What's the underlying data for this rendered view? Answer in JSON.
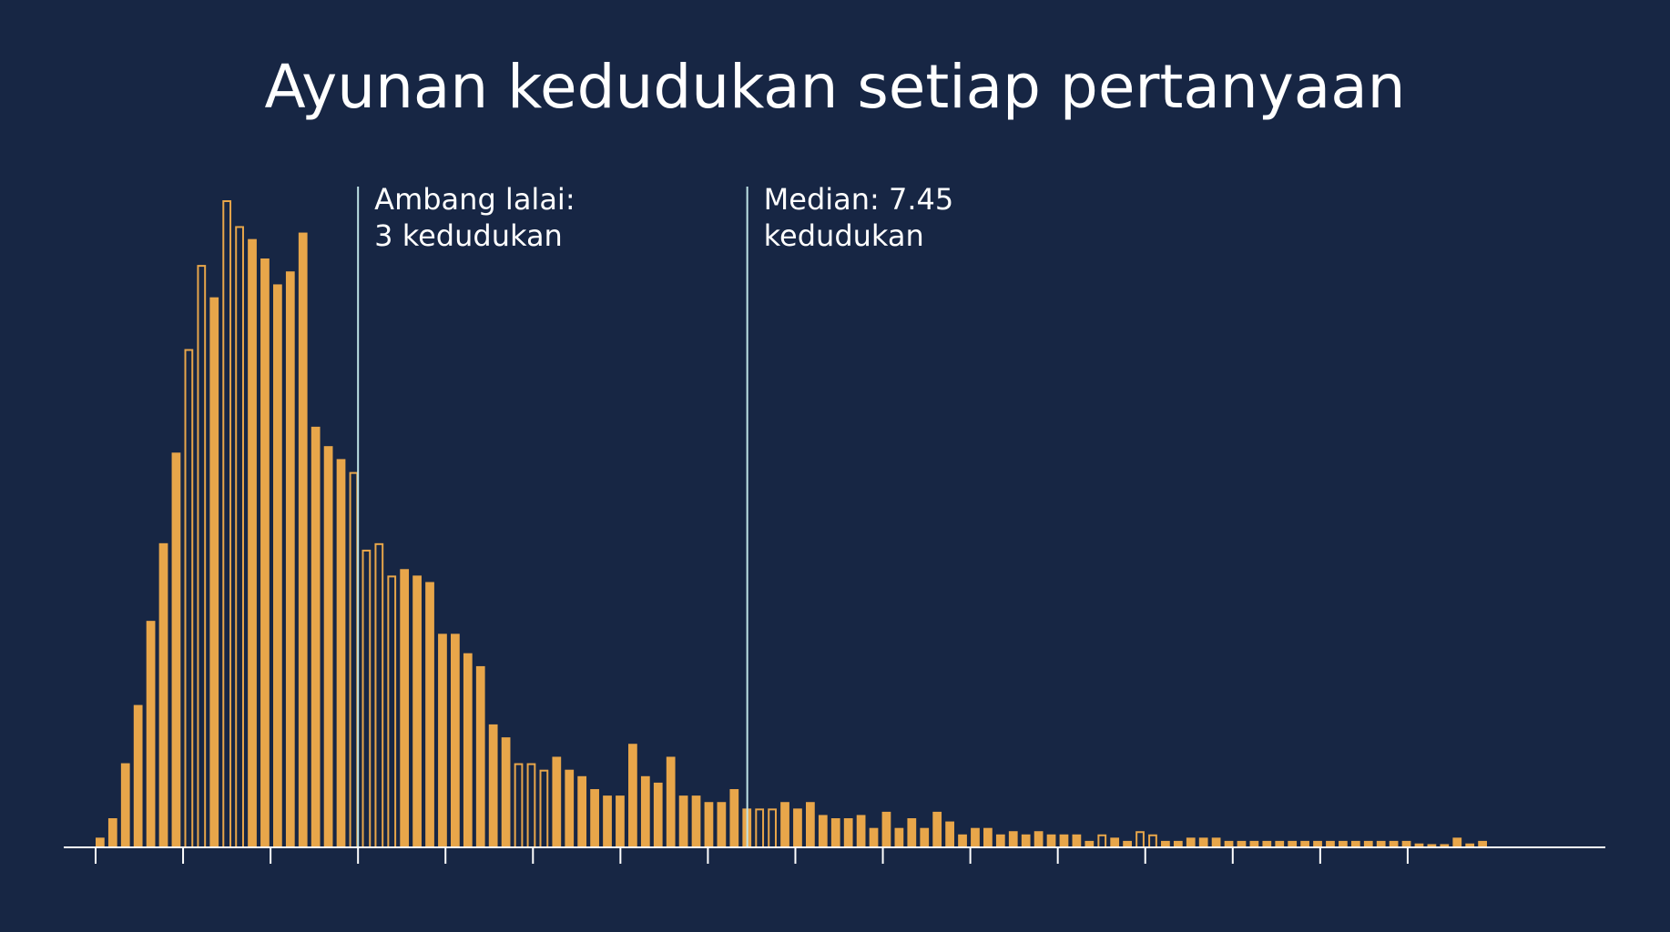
{
  "title": "Ayunan kedudukan setiap pertanyaan",
  "annotations": [
    {
      "x": 3.0,
      "line1": "Ambang lalai:",
      "line2": "3 kedudukan"
    },
    {
      "x": 7.45,
      "line1": "Median: 7.45",
      "line2": "kedudukan"
    }
  ],
  "colors": {
    "background": "#172644",
    "bar": "#E8A64A",
    "marker_line": "#BFE3E6",
    "axis": "#FFFFFF",
    "text": "#FFFFFF"
  },
  "chart_data": {
    "type": "bar",
    "title": "Ayunan kedudukan setiap pertanyaan",
    "xlabel": "",
    "ylabel": "",
    "xlim": [
      0,
      16.5
    ],
    "ylim": [
      0,
      100
    ],
    "bin_width": 0.145,
    "bin_start": 0.0,
    "x_ticks": [
      0,
      1,
      2,
      3,
      4,
      5,
      6,
      7,
      8,
      9,
      10,
      11,
      12,
      13,
      14,
      15
    ],
    "x_tick_labels_shown": false,
    "grid": false,
    "outlined_bins": [
      7,
      8,
      10,
      11,
      20,
      21,
      22,
      23,
      33,
      34,
      35,
      52,
      53,
      79,
      82,
      83
    ],
    "values": [
      1.5,
      4.5,
      13,
      22,
      35,
      47,
      61,
      77,
      90,
      85,
      100,
      96,
      94,
      91,
      87,
      89,
      95,
      65,
      62,
      60,
      58,
      46,
      47,
      42,
      43,
      42,
      41,
      33,
      33,
      30,
      28,
      19,
      17,
      13,
      13,
      12,
      14,
      12,
      11,
      9,
      8,
      8,
      16,
      11,
      10,
      14,
      8,
      8,
      7,
      7,
      9,
      6,
      6,
      6,
      7,
      6,
      7,
      5,
      4.5,
      4.5,
      5,
      3,
      5.5,
      3,
      4.5,
      3,
      5.5,
      4,
      2,
      3,
      3,
      2,
      2.5,
      2,
      2.5,
      2,
      2,
      2,
      1,
      2,
      1.5,
      1,
      2.5,
      2,
      1,
      1,
      1.5,
      1.5,
      1.5,
      1,
      1,
      1,
      1,
      1,
      1,
      1,
      1,
      1,
      1,
      1,
      1,
      1,
      1,
      1,
      0.6,
      0.5,
      0.5,
      1.5,
      0.6,
      1
    ]
  }
}
